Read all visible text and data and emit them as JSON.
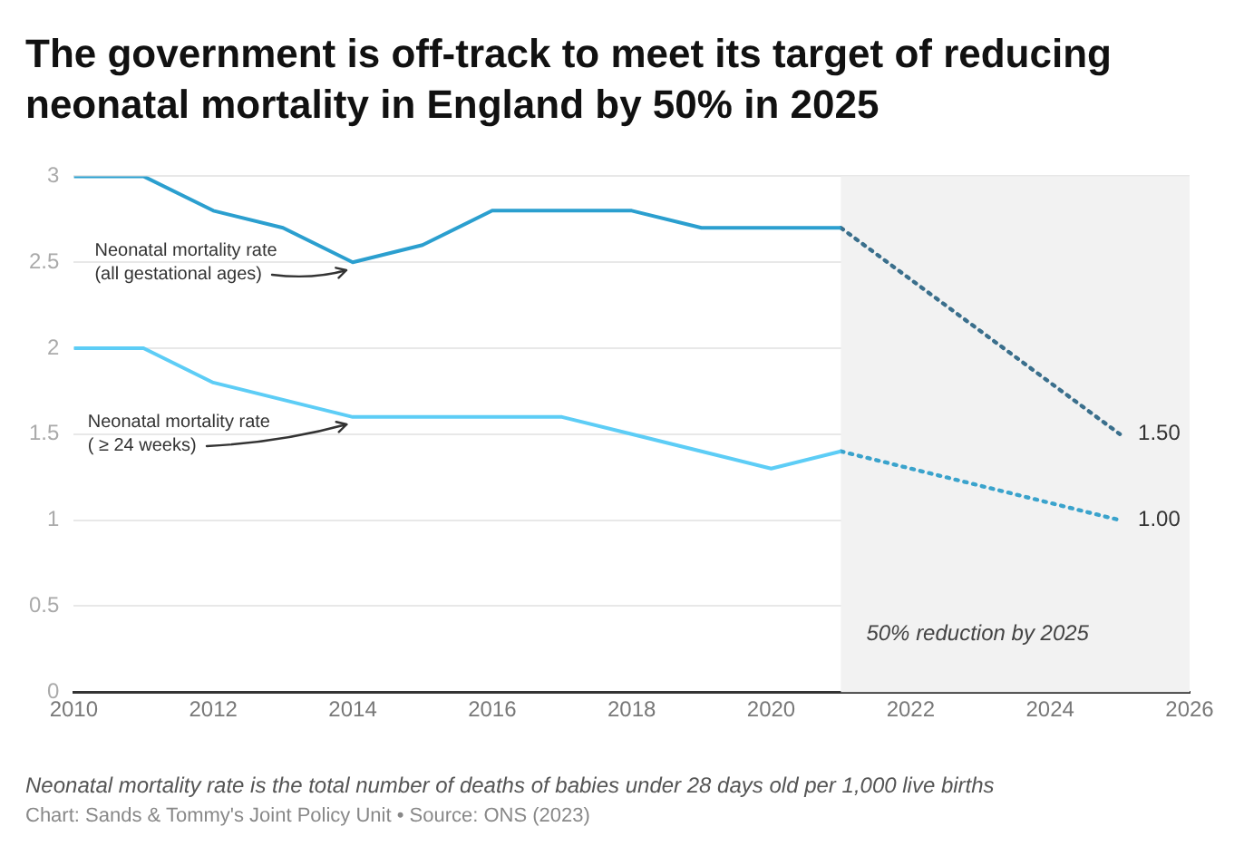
{
  "chart_data": {
    "type": "line",
    "title": "The government is off-track to meet its target of reducing neonatal mortality in England by 50% in 2025",
    "series": [
      {
        "name": "Neonatal mortality rate (all gestational ages)",
        "color": "#2b9fcf",
        "x": [
          2010,
          2011,
          2012,
          2013,
          2014,
          2015,
          2016,
          2017,
          2018,
          2019,
          2020,
          2021
        ],
        "values": [
          3.0,
          3.0,
          2.8,
          2.7,
          2.5,
          2.6,
          2.8,
          2.8,
          2.8,
          2.7,
          2.7,
          2.7
        ],
        "line_style": "solid"
      },
      {
        "name": "Neonatal mortality rate ( ≥ 24 weeks)",
        "color": "#5dcdf6",
        "x": [
          2010,
          2011,
          2012,
          2013,
          2014,
          2015,
          2016,
          2017,
          2018,
          2019,
          2020,
          2021
        ],
        "values": [
          2.0,
          2.0,
          1.8,
          1.7,
          1.6,
          1.6,
          1.6,
          1.6,
          1.5,
          1.4,
          1.3,
          1.4
        ],
        "line_style": "solid"
      },
      {
        "color": "#3a6f8c",
        "x": [
          2021,
          2025
        ],
        "values": [
          2.7,
          1.5
        ],
        "line_style": "dotted",
        "value_labels": [
          null,
          "1.50"
        ]
      },
      {
        "color": "#3aa3cc",
        "x": [
          2021,
          2025
        ],
        "values": [
          1.4,
          1.0
        ],
        "line_style": "dotted",
        "value_labels": [
          null,
          "1.00"
        ]
      }
    ],
    "xlim": [
      2010,
      2026
    ],
    "xticks": [
      2010,
      2012,
      2014,
      2016,
      2018,
      2020,
      2022,
      2024,
      2026
    ],
    "ylim": [
      0,
      3
    ],
    "yticks": [
      0,
      0.5,
      1,
      1.5,
      2,
      2.5,
      3
    ],
    "grid": "y",
    "marker": "none",
    "bands": [
      {
        "axis": "x",
        "from": 2021,
        "to": 2026,
        "label": "50% reduction by 2025",
        "color": "#f2f2f2"
      }
    ],
    "annotations": [
      "Neonatal mortality rate is the total number of deaths of babies under 28 days old per 1,000 live births",
      "Chart: Sands & Tommy's Joint Policy Unit • Source: ONS (2023)"
    ]
  }
}
